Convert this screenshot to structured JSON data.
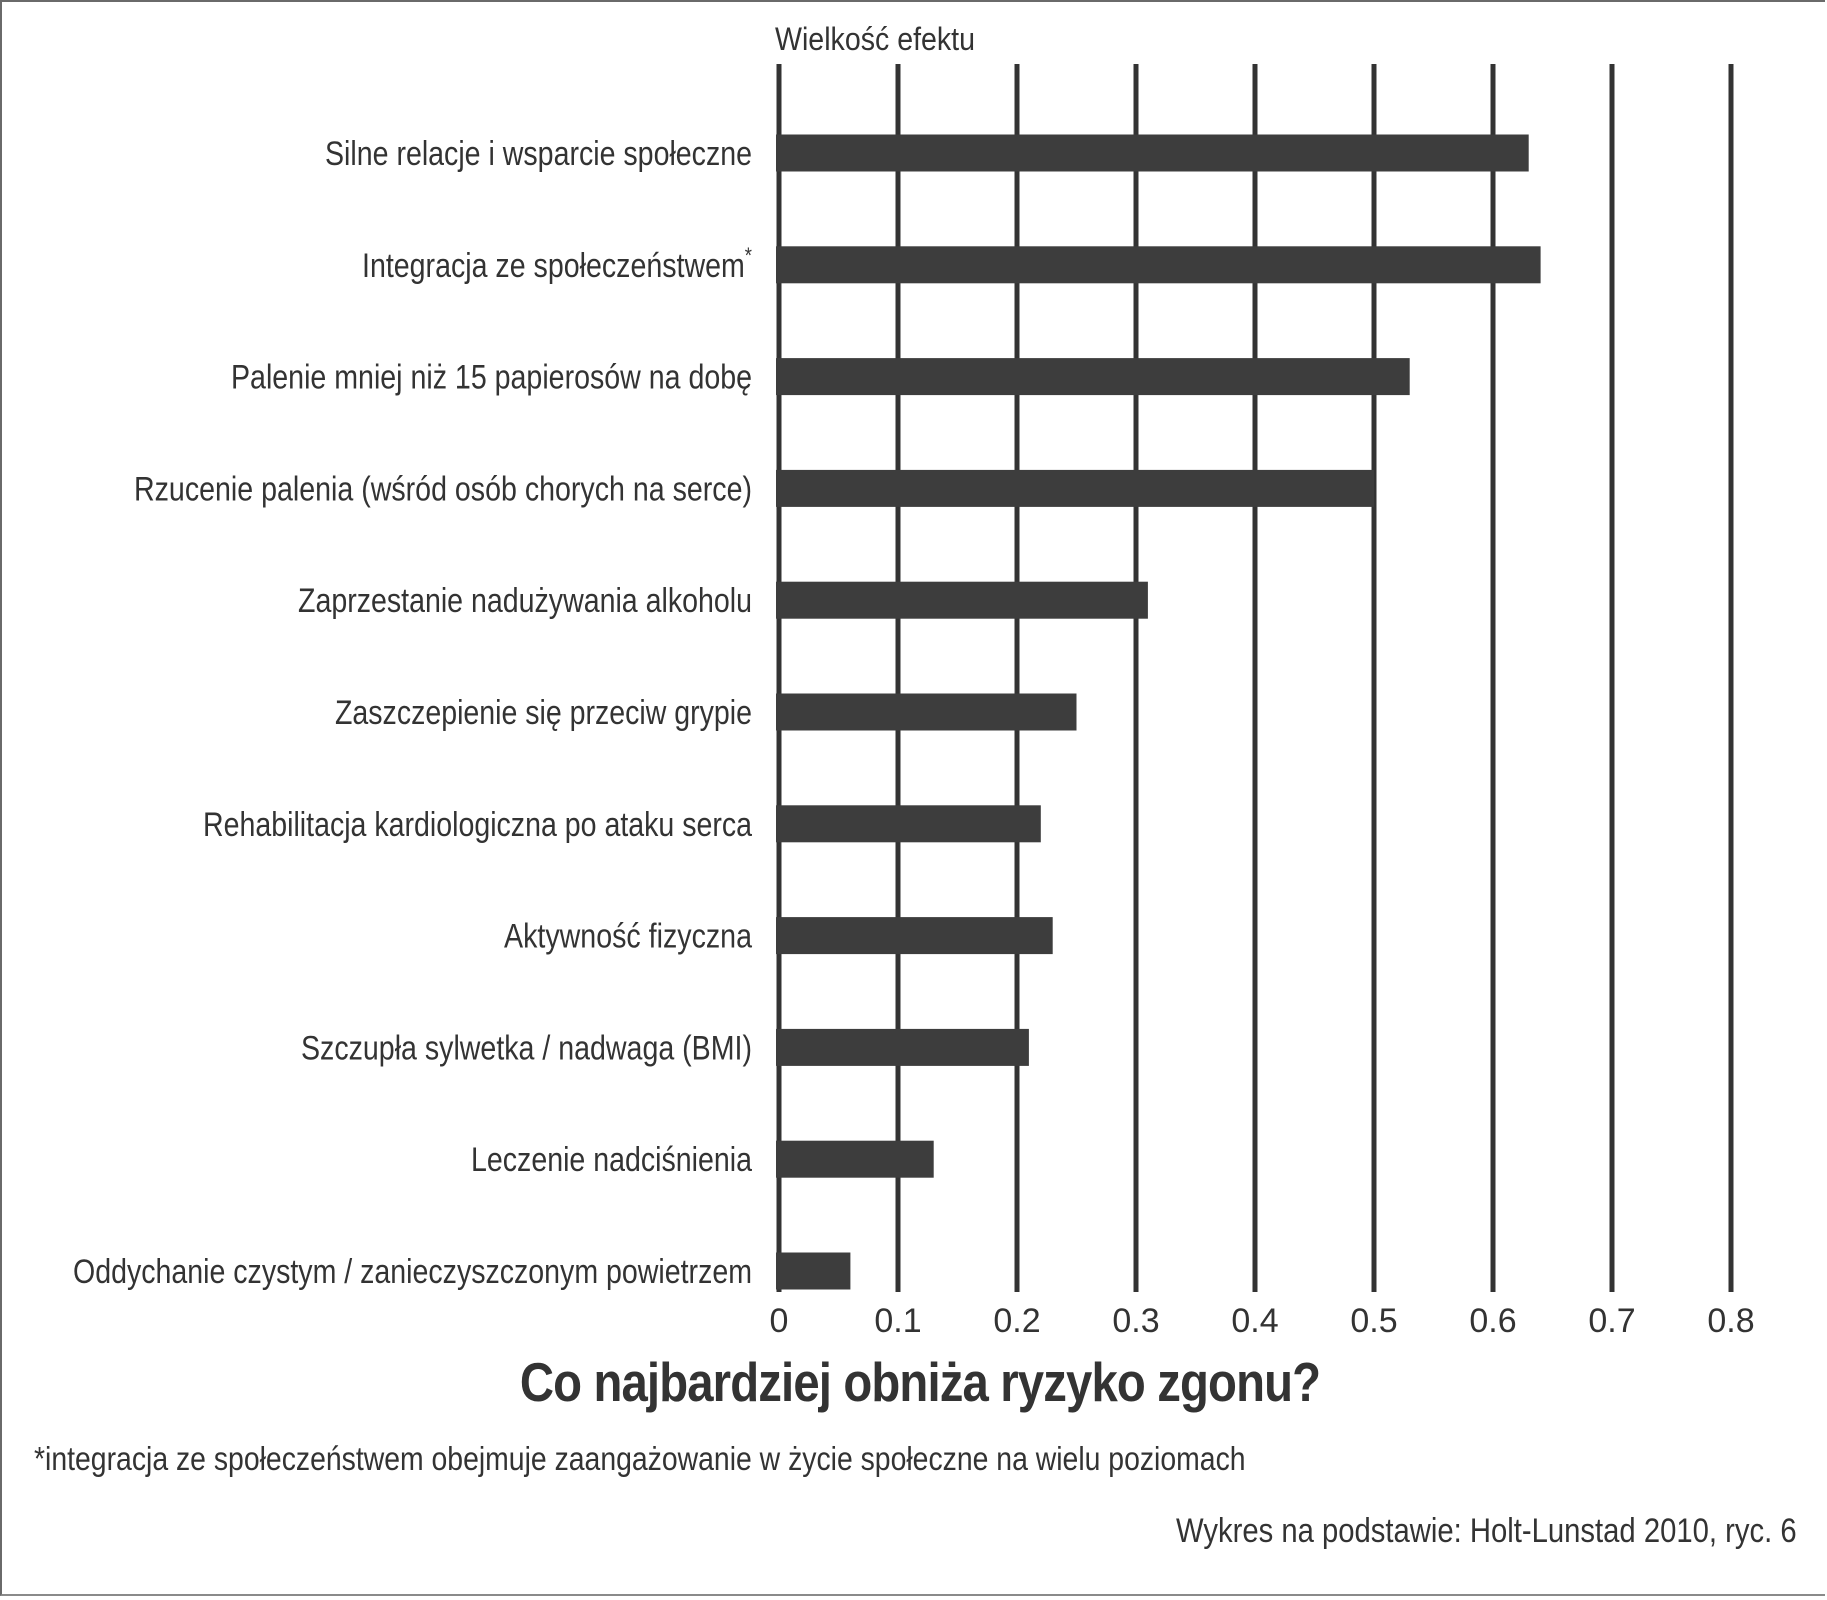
{
  "chart_data": {
    "type": "bar",
    "orientation": "horizontal",
    "title": "Co najbardziej obniża ryzyko zgonu?",
    "xlabel": "Wielkość efektu",
    "ylabel": "",
    "xlim": [
      0,
      0.8
    ],
    "ticks": [
      0,
      0.1,
      0.2,
      0.3,
      0.4,
      0.5,
      0.6,
      0.7,
      0.8
    ],
    "tick_labels": [
      "0",
      "0.1",
      "0.2",
      "0.3",
      "0.4",
      "0.5",
      "0.6",
      "0.7",
      "0.8"
    ],
    "grid": true,
    "bar_color": "#3d3d3d",
    "grid_color": "#333333",
    "categories": [
      "Silne relacje i wsparcie społeczne",
      "Integracja ze społeczeństwem",
      "Palenie mniej niż 15 papierosów na dobę",
      "Rzucenie palenia (wśród osób chorych na serce)",
      "Zaprzestanie nadużywania alkoholu",
      "Zaszczepienie się przeciw grypie",
      "Rehabilitacja kardiologiczna po ataku serca",
      "Aktywność fizyczna",
      "Szczupła sylwetka / nadwaga (BMI)",
      "Leczenie nadciśnienia",
      "Oddychanie czystym / zanieczyszczonym powietrzem"
    ],
    "category_markers": [
      "",
      "*",
      "",
      "",
      "",
      "",
      "",
      "",
      "",
      "",
      ""
    ],
    "values": [
      0.63,
      0.64,
      0.53,
      0.5,
      0.31,
      0.25,
      0.22,
      0.23,
      0.21,
      0.13,
      0.06
    ]
  },
  "footnote": "*integracja ze społeczeństwem obejmuje zaangażowanie w życie społeczne na wielu poziomach",
  "source": "Wykres na podstawie: Holt-Lunstad 2010, ryc. 6"
}
